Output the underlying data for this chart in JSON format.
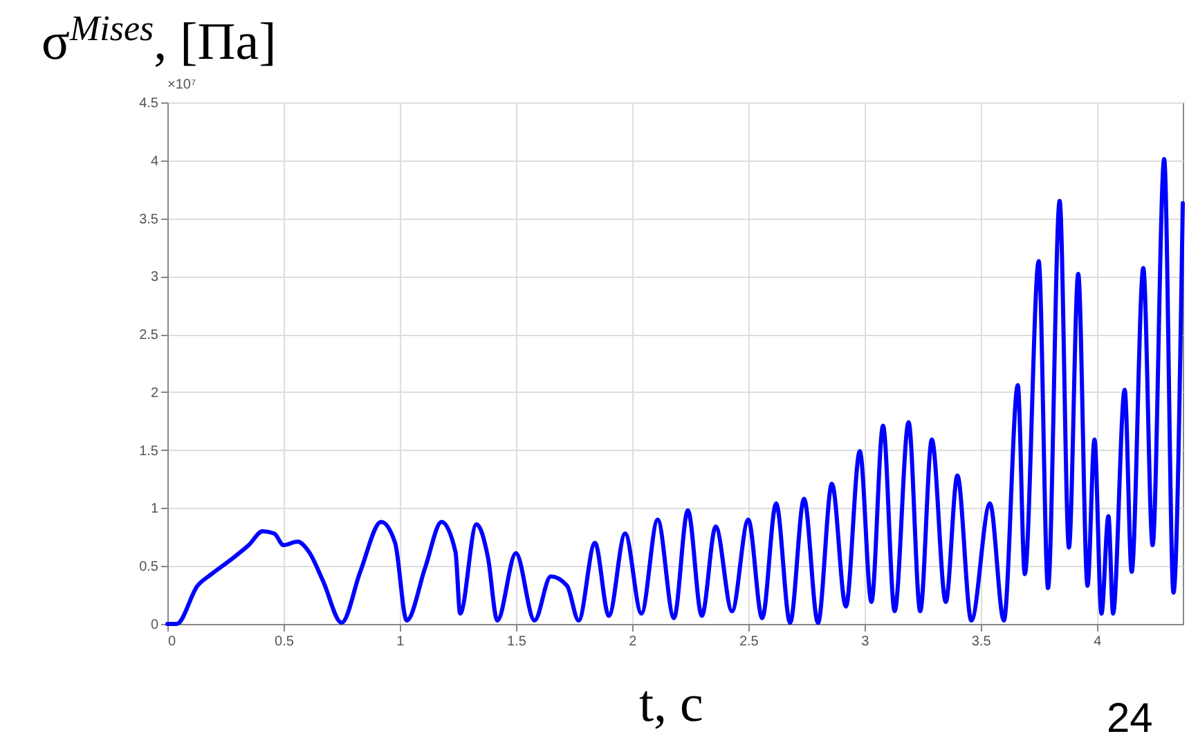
{
  "chart_data": {
    "type": "line",
    "xlabel": "t, с",
    "ylabel": "σ$^{Mises}$, [Па]",
    "annotations": [
      "×10⁷",
      "24"
    ],
    "xlim": [
      0,
      4.37
    ],
    "xticks": [
      0,
      0.5,
      1,
      1.5,
      2,
      2.5,
      3,
      3.5,
      4
    ],
    "ylim": [
      0,
      4.5
    ],
    "yticks": [
      0,
      0.5,
      1,
      1.5,
      2,
      2.5,
      3,
      3.5,
      4,
      4.5
    ],
    "grid": true,
    "series": [
      {
        "color": "#0000ff",
        "x": [
          0,
          0.04,
          0.13,
          0.19,
          0.27,
          0.35,
          0.41,
          0.46,
          0.5,
          0.56,
          0.61,
          0.67,
          0.75,
          0.83,
          0.92,
          0.98,
          1.03,
          1.11,
          1.18,
          1.24,
          1.26,
          1.33,
          1.38,
          1.42,
          1.5,
          1.58,
          1.65,
          1.72,
          1.77,
          1.84,
          1.9,
          1.97,
          2.04,
          2.11,
          2.18,
          2.24,
          2.3,
          2.36,
          2.43,
          2.5,
          2.56,
          2.62,
          2.68,
          2.74,
          2.8,
          2.86,
          2.92,
          2.98,
          3.03,
          3.08,
          3.13,
          3.19,
          3.24,
          3.29,
          3.35,
          3.4,
          3.46,
          3.54,
          3.6,
          3.66,
          3.69,
          3.75,
          3.79,
          3.84,
          3.88,
          3.92,
          3.96,
          3.99,
          4.02,
          4.05,
          4.07,
          4.12,
          4.15,
          4.2,
          4.24,
          4.29,
          4.33,
          4.37
        ],
        "values": [
          0,
          0,
          0.33,
          0.43,
          0.55,
          0.68,
          0.8,
          0.78,
          0.68,
          0.71,
          0.62,
          0.37,
          0.01,
          0.45,
          0.88,
          0.7,
          0.03,
          0.49,
          0.88,
          0.62,
          0.09,
          0.86,
          0.57,
          0.03,
          0.61,
          0.03,
          0.41,
          0.33,
          0.03,
          0.7,
          0.07,
          0.78,
          0.09,
          0.9,
          0.05,
          0.98,
          0.07,
          0.84,
          0.11,
          0.9,
          0.05,
          1.04,
          0.01,
          1.08,
          0.01,
          1.21,
          0.15,
          1.49,
          0.19,
          1.71,
          0.11,
          1.74,
          0.11,
          1.59,
          0.19,
          1.28,
          0.03,
          1.04,
          0.03,
          2.06,
          0.43,
          3.13,
          0.31,
          3.65,
          0.66,
          3.02,
          0.33,
          1.59,
          0.09,
          0.93,
          0.09,
          2.02,
          0.45,
          3.07,
          0.68,
          4.01,
          0.27,
          3.63
        ]
      }
    ]
  }
}
